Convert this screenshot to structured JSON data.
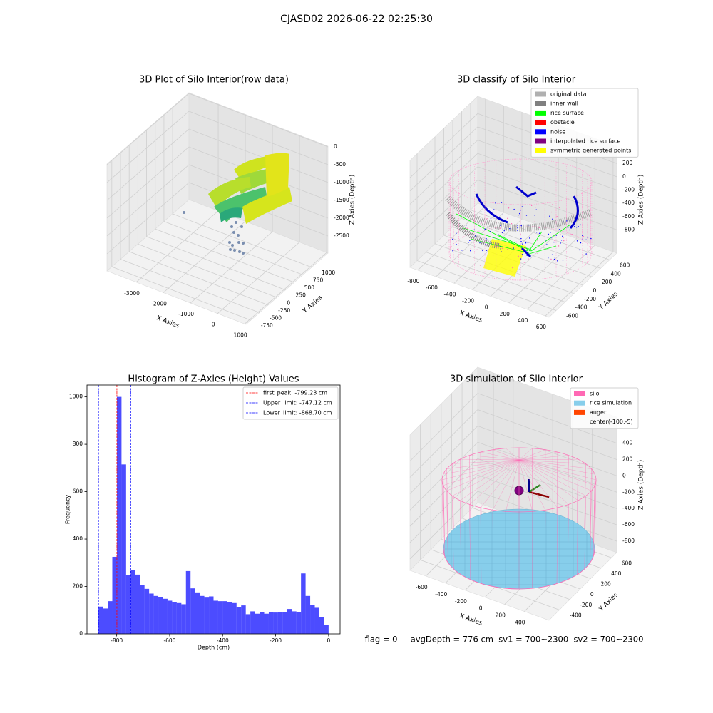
{
  "title": "CJASD02 2026-06-22 02:25:30",
  "status": "flag = 0     avgDepth = 776 cm  sv1 = 700~2300  sv2 = 700~2300",
  "chart_data": [
    {
      "type": "scatter3d",
      "title": "3D Plot of Silo Interior(row data)",
      "xlabel": "X Axies",
      "ylabel": "Y Axies",
      "zlabel": "Z Axies (Depth)",
      "xlim": [
        -4080,
        1050
      ],
      "ylim": [
        -890,
        1470
      ],
      "zlim": [
        -2980,
        20
      ],
      "xticks": [
        -3000,
        -2000,
        -1000,
        0,
        1000
      ],
      "yticks": [
        -750,
        -500,
        -250,
        0,
        250,
        500,
        750,
        1000
      ],
      "zticks": [
        -2500,
        -2000,
        -1500,
        -1000,
        -500,
        0
      ]
    },
    {
      "type": "scatter3d",
      "title": "3D classify of Silo Interior",
      "xlabel": "X Axies",
      "ylabel": "Y Axies",
      "zlabel": "Z Axies (Depth)",
      "xlim": [
        -885,
        640
      ],
      "ylim": [
        -760,
        760
      ],
      "zlim": [
        -1150,
        460
      ],
      "xticks": [
        -800,
        -600,
        -400,
        -200,
        0,
        200,
        400,
        600
      ],
      "yticks": [
        -600,
        -400,
        -200,
        0,
        200,
        400,
        600
      ],
      "zticks": [
        -800,
        -600,
        -400,
        -200,
        0,
        200
      ],
      "legend_entries": [
        {
          "label": "original data",
          "color": "#b0b0b0"
        },
        {
          "label": "inner wall",
          "color": "#808080"
        },
        {
          "label": "rice surface",
          "color": "#00ff00"
        },
        {
          "label": "obstacle",
          "color": "#ff0000"
        },
        {
          "label": "noise",
          "color": "#0000ff"
        },
        {
          "label": "interpolated rice surface",
          "color": "#800080"
        },
        {
          "label": "symmetric generated points",
          "color": "#ffff00"
        }
      ]
    },
    {
      "type": "histogram",
      "title": "Histogram of Z-Axies (Height) Values",
      "xlabel": "Depth (cm)",
      "ylabel": "Frequency",
      "bins": [
        -868.7,
        -851.33,
        -833.95,
        -816.58,
        -799.2,
        -781.83,
        -764.46,
        -747.08,
        -729.71,
        -712.33,
        -694.96,
        -677.59,
        -660.21,
        -642.84,
        -625.46,
        -608.09,
        -590.72,
        -573.34,
        -555.97,
        -538.59,
        -521.22,
        -503.85,
        -486.47,
        -469.1,
        -451.72,
        -434.35,
        -416.98,
        -399.6,
        -382.23,
        -364.85,
        -347.48,
        -330.11,
        -312.73,
        -295.36,
        -277.98,
        -260.61,
        -243.24,
        -225.86,
        -208.49,
        -191.11,
        -173.74,
        -156.37,
        -138.99,
        -121.62,
        -104.24,
        -86.87,
        -69.5,
        -52.12,
        -34.75,
        -17.37,
        0
      ],
      "values": [
        115,
        107,
        138,
        325,
        1000,
        715,
        248,
        268,
        250,
        207,
        190,
        170,
        160,
        155,
        148,
        140,
        133,
        130,
        125,
        265,
        192,
        175,
        160,
        153,
        158,
        140,
        138,
        138,
        135,
        130,
        112,
        120,
        83,
        95,
        85,
        92,
        85,
        93,
        90,
        92,
        92,
        105,
        95,
        93,
        255,
        160,
        122,
        110,
        72,
        38
      ],
      "color": "#0000ff",
      "alpha": 0.7,
      "xlim": [
        -912.1,
        43.4
      ],
      "ylim": [
        0,
        1050
      ],
      "xticks": [
        -800,
        -600,
        -400,
        -200,
        0
      ],
      "yticks": [
        0,
        200,
        400,
        600,
        800,
        1000
      ],
      "vlines": [
        {
          "label": "first_peak: -799.23 cm",
          "value": -799.23,
          "color": "#ff0000"
        },
        {
          "label": "Upper_limit: -747.12 cm",
          "value": -747.12,
          "color": "#0000ff"
        },
        {
          "label": "Lower_limit: -868.70 cm",
          "value": -868.7,
          "color": "#0000ff"
        }
      ],
      "legend": "upper right"
    },
    {
      "type": "surface3d",
      "title": "3D simulation of Silo Interior",
      "xlabel": "X Axies",
      "ylabel": "Y Axies",
      "zlabel": "Z Axies (Depth)",
      "xlim": [
        -760,
        650
      ],
      "ylim": [
        -600,
        700
      ],
      "zlim": [
        -940,
        720
      ],
      "xticks": [
        -600,
        -400,
        -200,
        0,
        200,
        400
      ],
      "yticks": [
        -400,
        -200,
        0,
        200,
        400,
        600
      ],
      "zticks": [
        -800,
        -600,
        -400,
        -200,
        0,
        200,
        400
      ],
      "legend_entries": [
        {
          "label": "silo",
          "color": "#ff69b4"
        },
        {
          "label": "rice simulation",
          "color": "#87ceeb"
        },
        {
          "label": "auger",
          "color": "#ff4500"
        },
        {
          "label": "center(-100,-5)"
        }
      ]
    }
  ]
}
